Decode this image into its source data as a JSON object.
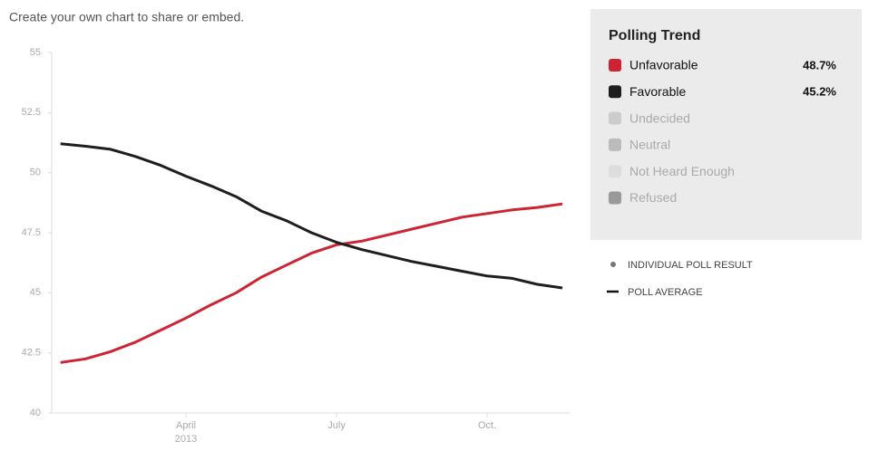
{
  "header": "Create your own chart to share or embed.",
  "chart_data": {
    "type": "line",
    "title": "Polling Trend",
    "categories": [
      null,
      null,
      null,
      null,
      null,
      "April",
      null,
      null,
      null,
      null,
      null,
      "July",
      null,
      null,
      null,
      null,
      null,
      "Oct.",
      null,
      null,
      null
    ],
    "year_label": "2013",
    "ylim": [
      40,
      55
    ],
    "yticks": [
      40,
      42.5,
      45,
      47.5,
      50,
      52.5,
      55
    ],
    "series": [
      {
        "name": "Unfavorable",
        "color": "#cd2333",
        "last_label": "48.7%",
        "values": [
          42.1,
          42.25,
          42.55,
          42.95,
          43.45,
          43.95,
          44.5,
          45.0,
          45.65,
          46.15,
          46.65,
          47.0,
          47.15,
          47.4,
          47.65,
          47.9,
          48.15,
          48.3,
          48.45,
          48.55,
          48.7
        ]
      },
      {
        "name": "Favorable",
        "color": "#1e1e1e",
        "last_label": "45.2%",
        "values": [
          51.2,
          51.1,
          50.97,
          50.67,
          50.3,
          49.85,
          49.45,
          49.0,
          48.4,
          48.0,
          47.5,
          47.1,
          46.8,
          46.55,
          46.3,
          46.1,
          45.9,
          45.7,
          45.6,
          45.35,
          45.2
        ]
      }
    ],
    "inactive_legend": [
      {
        "name": "Undecided",
        "color": "#cccccc"
      },
      {
        "name": "Neutral",
        "color": "#bbbbbb"
      },
      {
        "name": "Not Heard Enough",
        "color": "#dddddd"
      },
      {
        "name": "Refused",
        "color": "#999999"
      }
    ],
    "key_poll": "INDIVIDUAL POLL RESULT",
    "key_average": "POLL AVERAGE"
  }
}
